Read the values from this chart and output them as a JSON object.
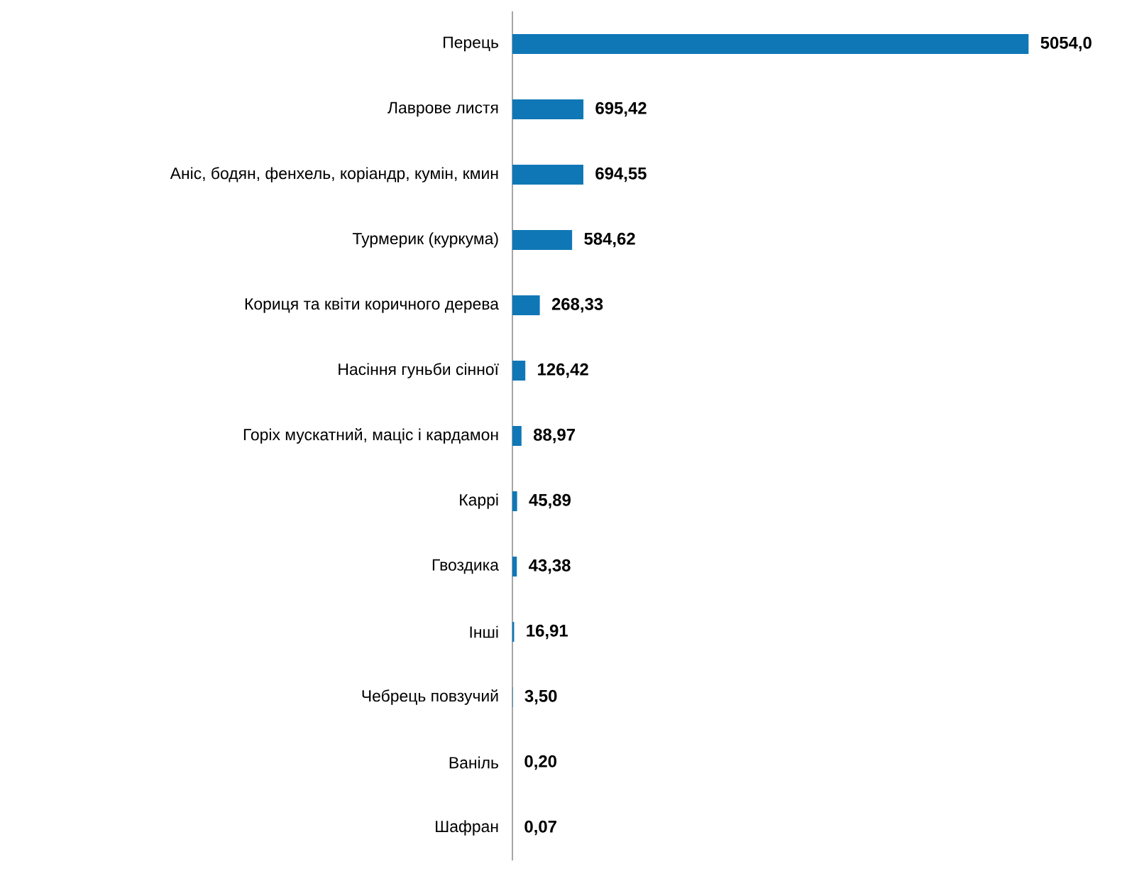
{
  "chart_data": {
    "type": "bar",
    "orientation": "horizontal",
    "color": "#0f77b6",
    "categories": [
      "Перець",
      "Лаврове листя",
      "Аніс, бодян, фенхель, коріандр, кумін, кмин",
      "Турмерик (куркума)",
      "Кориця та квіти коричного дерева",
      "Насіння гуньби сінної",
      "Горіх мускатний, маціс і кардамон",
      "Каррі",
      "Гвоздика",
      "Інші",
      "Чебрець повзучий",
      "Ваніль",
      "Шафран"
    ],
    "values": [
      5054.0,
      695.42,
      694.55,
      584.62,
      268.33,
      126.42,
      88.97,
      45.89,
      43.38,
      16.91,
      3.5,
      0.2,
      0.07
    ],
    "value_labels": [
      "5054,0",
      "695,42",
      "694,55",
      "584,62",
      "268,33",
      "126,42",
      "88,97",
      "45,89",
      "43,38",
      "16,91",
      "3,50",
      "0,20",
      "0,07"
    ]
  }
}
